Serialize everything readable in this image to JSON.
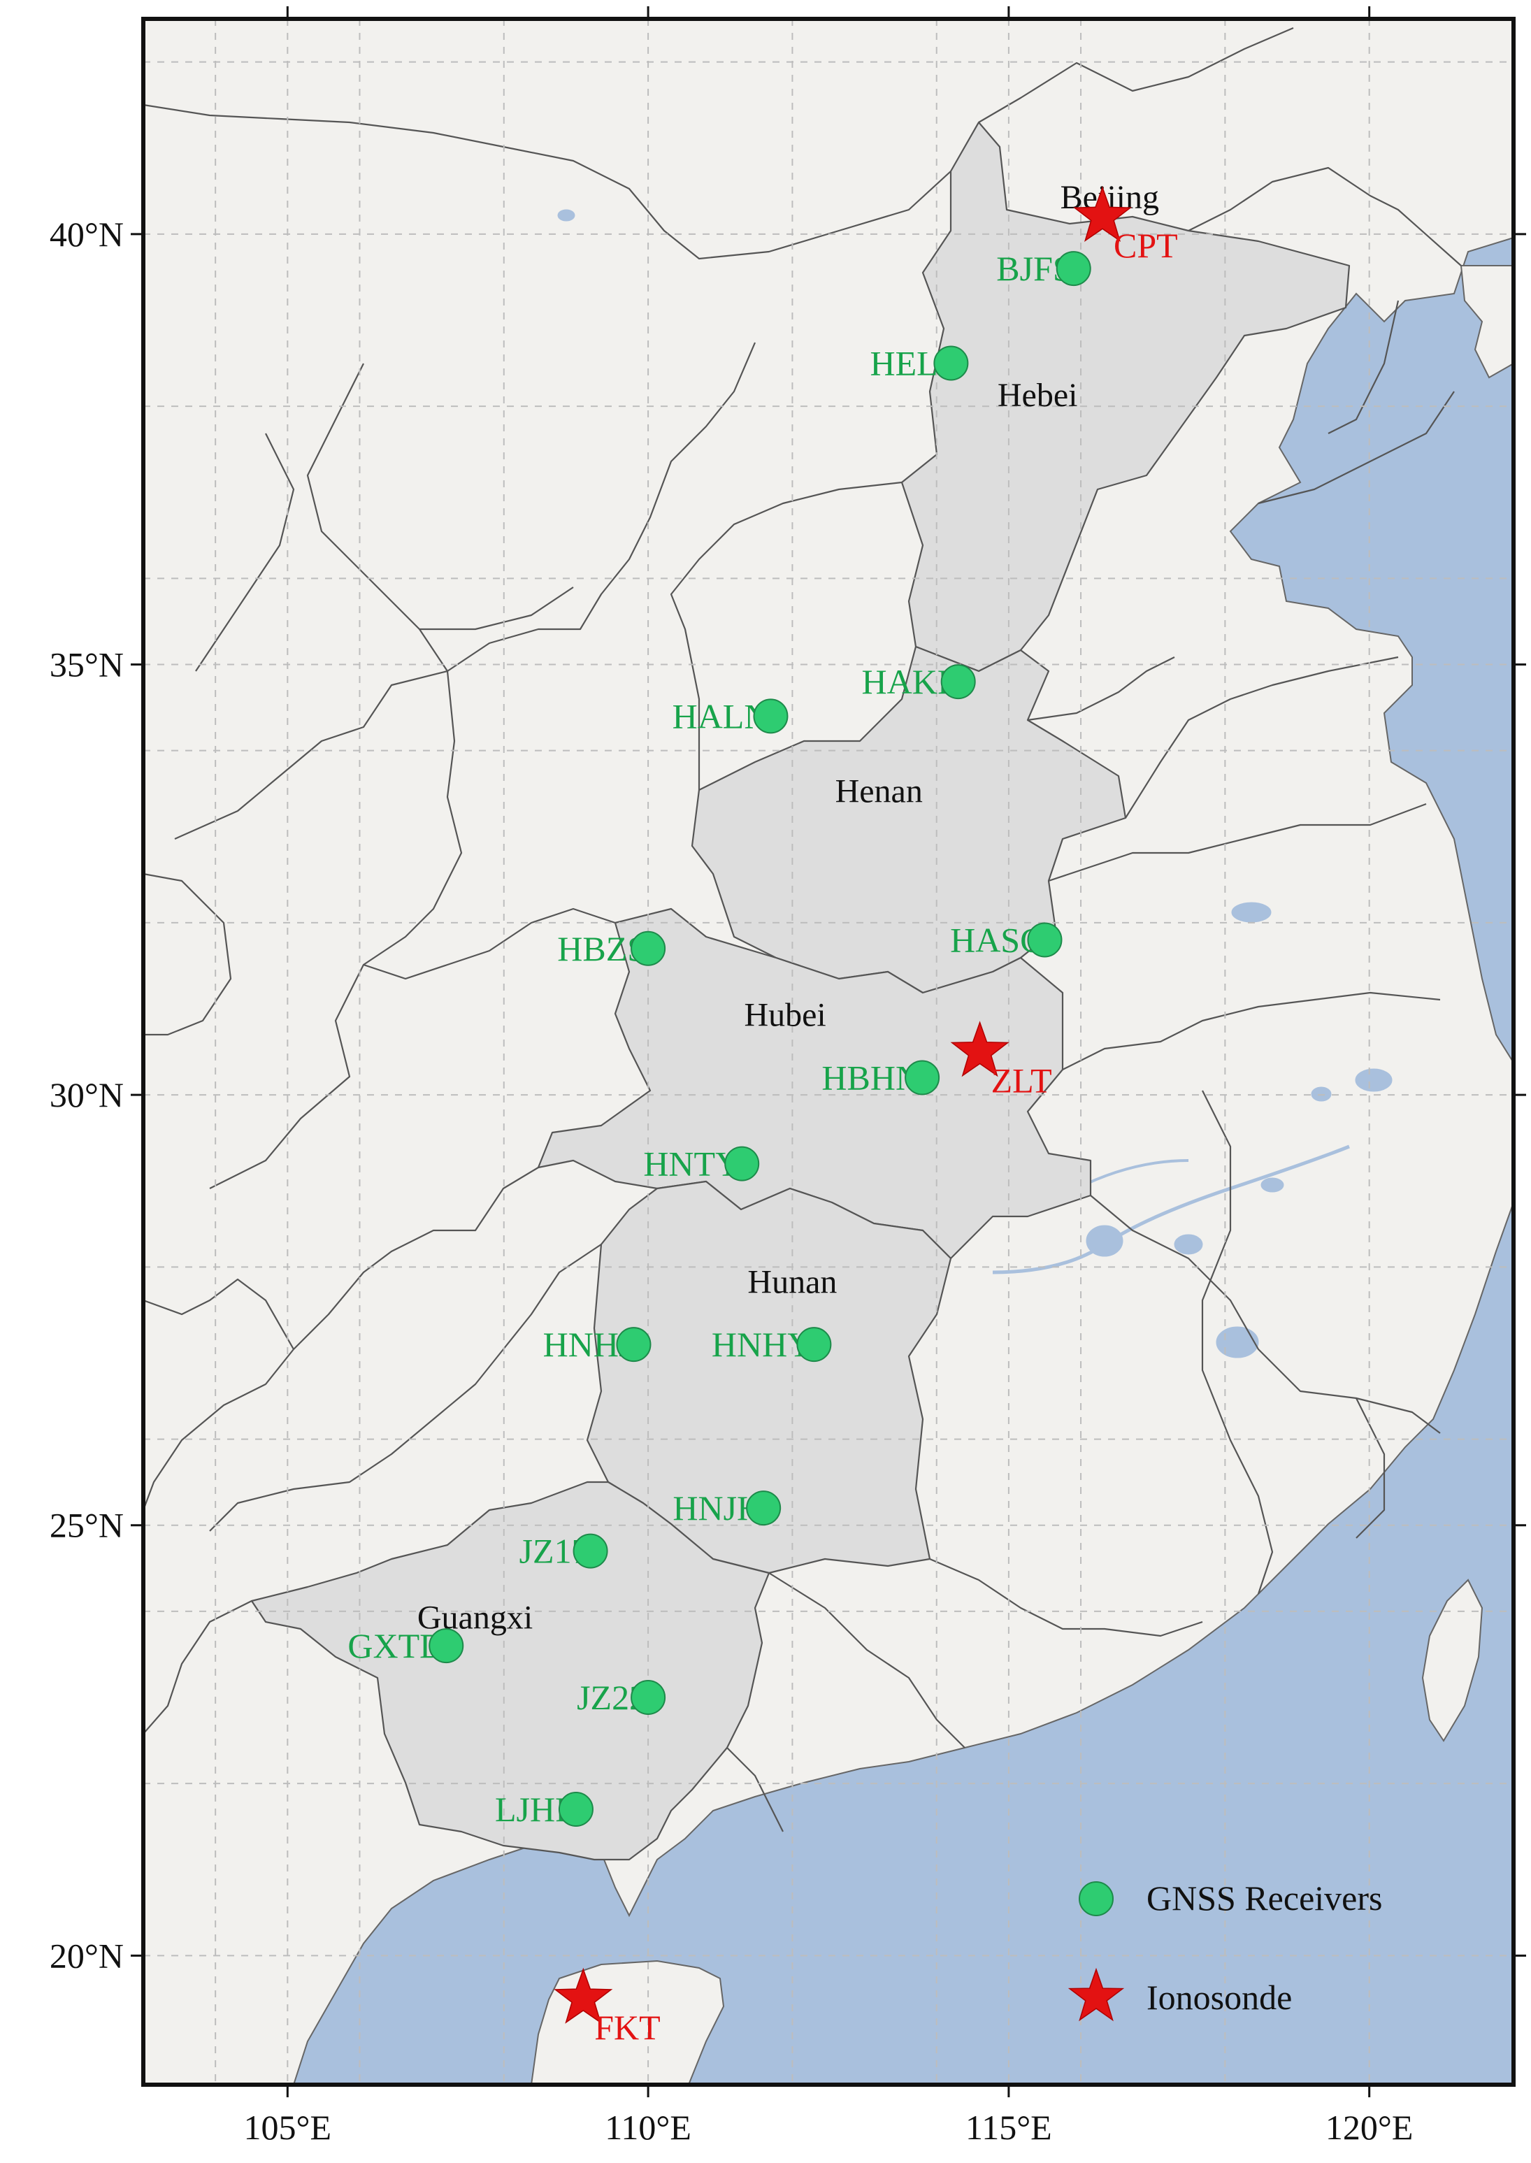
{
  "map": {
    "lon_range": [
      103,
      122
    ],
    "lat_range": [
      18.5,
      42.5
    ],
    "colors": {
      "land": "#f2f1ee",
      "ocean": "#a9c0dd",
      "highlight": "#dddddd",
      "gnss": "#2ecc71",
      "ionosonde": "#e31212",
      "station_text": "#17a34a"
    },
    "x_ticks": [
      {
        "lon": 105,
        "label": "105°E"
      },
      {
        "lon": 110,
        "label": "110°E"
      },
      {
        "lon": 115,
        "label": "115°E"
      },
      {
        "lon": 120,
        "label": "120°E"
      }
    ],
    "y_ticks": [
      {
        "lat": 20,
        "label": "20°N"
      },
      {
        "lat": 25,
        "label": "25°N"
      },
      {
        "lat": 30,
        "label": "30°N"
      },
      {
        "lat": 35,
        "label": "35°N"
      },
      {
        "lat": 40,
        "label": "40°N"
      }
    ],
    "provinces": [
      {
        "name": "Beijing",
        "lon": 116.4,
        "lat": 40.3
      },
      {
        "name": "Hebei",
        "lon": 115.4,
        "lat": 38.0
      },
      {
        "name": "Henan",
        "lon": 113.2,
        "lat": 33.4
      },
      {
        "name": "Hubei",
        "lon": 111.9,
        "lat": 30.8
      },
      {
        "name": "Hunan",
        "lon": 112.0,
        "lat": 27.7
      },
      {
        "name": "Guangxi",
        "lon": 107.6,
        "lat": 23.8
      }
    ],
    "gnss_receivers": [
      {
        "code": "BJFS",
        "lon": 115.9,
        "lat": 39.6,
        "label_side": "left"
      },
      {
        "code": "HELI",
        "lon": 114.2,
        "lat": 38.5,
        "label_side": "left"
      },
      {
        "code": "HAKF",
        "lon": 114.3,
        "lat": 34.8,
        "label_side": "left"
      },
      {
        "code": "HALN",
        "lon": 111.7,
        "lat": 34.4,
        "label_side": "left"
      },
      {
        "code": "HASC",
        "lon": 115.5,
        "lat": 31.8,
        "label_side": "left"
      },
      {
        "code": "HBZS",
        "lon": 110.0,
        "lat": 31.7,
        "label_side": "left"
      },
      {
        "code": "HBHN",
        "lon": 113.8,
        "lat": 30.2,
        "label_side": "left"
      },
      {
        "code": "HNTY",
        "lon": 111.3,
        "lat": 29.2,
        "label_side": "left"
      },
      {
        "code": "HNHY",
        "lon": 112.3,
        "lat": 27.1,
        "label_side": "left"
      },
      {
        "code": "HNHJ",
        "lon": 109.8,
        "lat": 27.1,
        "label_side": "left"
      },
      {
        "code": "HNJH",
        "lon": 111.6,
        "lat": 25.2,
        "label_side": "left"
      },
      {
        "code": "JZ17",
        "lon": 109.2,
        "lat": 24.7,
        "label_side": "left"
      },
      {
        "code": "GXTD",
        "lon": 107.2,
        "lat": 23.6,
        "label_side": "left"
      },
      {
        "code": "JZ22",
        "lon": 110.0,
        "lat": 23.0,
        "label_side": "left"
      },
      {
        "code": "LJHP",
        "lon": 109.0,
        "lat": 21.7,
        "label_side": "left"
      }
    ],
    "ionosondes": [
      {
        "code": "CPT",
        "lon": 116.3,
        "lat": 40.2
      },
      {
        "code": "ZLT",
        "lon": 114.6,
        "lat": 30.5
      },
      {
        "code": "FKT",
        "lon": 109.1,
        "lat": 19.5
      }
    ],
    "legend": [
      {
        "symbol": "circle",
        "label": "GNSS Receivers"
      },
      {
        "symbol": "star",
        "label": "Ionosonde"
      }
    ]
  }
}
